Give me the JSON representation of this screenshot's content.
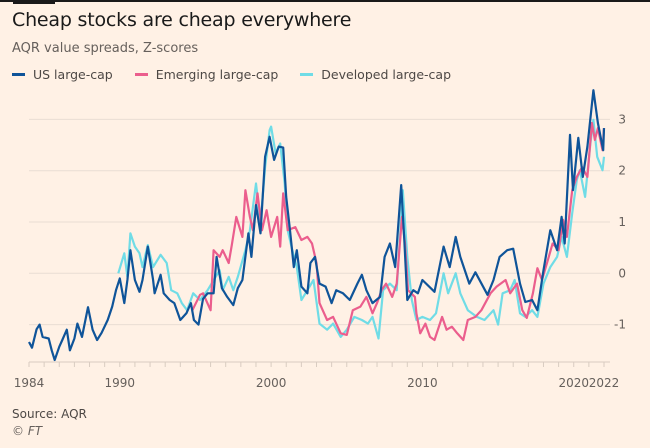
{
  "header": {
    "title": "Cheap stocks are cheap everywhere",
    "subtitle": "AQR value spreads, Z-scores"
  },
  "footer": {
    "source": "Source: AQR",
    "copyright": "© FT"
  },
  "chart_data": {
    "type": "line",
    "title": "Cheap stocks are cheap everywhere",
    "subtitle": "AQR value spreads, Z-scores",
    "xlabel": "",
    "ylabel": "",
    "xlim": [
      1984,
      2022
    ],
    "ylim": [
      -1.75,
      3.6
    ],
    "x_ticks": [
      1984,
      1990,
      2000,
      2010,
      2020,
      2022
    ],
    "y_ticks": [
      3,
      2,
      1,
      0,
      -1
    ],
    "y_axis_side": "right",
    "grid": "horizontal",
    "legend": "top-left",
    "series": [
      {
        "name": "US large-cap",
        "color": "#0f5499",
        "points": [
          [
            1984.0,
            -1.34
          ],
          [
            1984.2,
            -1.45
          ],
          [
            1984.5,
            -1.09
          ],
          [
            1984.7,
            -1.0
          ],
          [
            1984.9,
            -1.24
          ],
          [
            1985.3,
            -1.27
          ],
          [
            1985.5,
            -1.5
          ],
          [
            1985.7,
            -1.69
          ],
          [
            1986.0,
            -1.43
          ],
          [
            1986.2,
            -1.3
          ],
          [
            1986.5,
            -1.1
          ],
          [
            1986.7,
            -1.5
          ],
          [
            1987.0,
            -1.27
          ],
          [
            1987.2,
            -0.98
          ],
          [
            1987.5,
            -1.24
          ],
          [
            1987.9,
            -0.66
          ],
          [
            1988.2,
            -1.1
          ],
          [
            1988.5,
            -1.3
          ],
          [
            1988.8,
            -1.16
          ],
          [
            1989.2,
            -0.91
          ],
          [
            1989.5,
            -0.65
          ],
          [
            1989.75,
            -0.33
          ],
          [
            1990.0,
            -0.1
          ],
          [
            1990.3,
            -0.58
          ],
          [
            1990.5,
            -0.13
          ],
          [
            1990.7,
            0.45
          ],
          [
            1991.0,
            -0.13
          ],
          [
            1991.3,
            -0.36
          ],
          [
            1991.5,
            -0.13
          ],
          [
            1991.85,
            0.52
          ],
          [
            1992.2,
            -0.13
          ],
          [
            1992.3,
            -0.39
          ],
          [
            1992.7,
            -0.03
          ],
          [
            1992.9,
            -0.39
          ],
          [
            1993.3,
            -0.52
          ],
          [
            1993.6,
            -0.58
          ],
          [
            1994.0,
            -0.91
          ],
          [
            1994.4,
            -0.78
          ],
          [
            1994.7,
            -0.58
          ],
          [
            1994.9,
            -0.91
          ],
          [
            1995.2,
            -1.0
          ],
          [
            1995.5,
            -0.5
          ],
          [
            1995.8,
            -0.39
          ],
          [
            1996.2,
            -0.39
          ],
          [
            1996.4,
            0.32
          ],
          [
            1996.75,
            -0.29
          ],
          [
            1997.1,
            -0.46
          ],
          [
            1997.5,
            -0.62
          ],
          [
            1997.8,
            -0.29
          ],
          [
            1998.1,
            -0.13
          ],
          [
            1998.5,
            0.78
          ],
          [
            1998.7,
            0.32
          ],
          [
            1999.0,
            1.33
          ],
          [
            1999.3,
            0.78
          ],
          [
            1999.6,
            2.27
          ],
          [
            1999.9,
            2.66
          ],
          [
            2000.2,
            2.21
          ],
          [
            2000.5,
            2.47
          ],
          [
            2000.8,
            2.45
          ],
          [
            2001.0,
            1.49
          ],
          [
            2001.25,
            0.84
          ],
          [
            2001.5,
            0.12
          ],
          [
            2001.7,
            0.45
          ],
          [
            2002.0,
            -0.26
          ],
          [
            2002.4,
            -0.39
          ],
          [
            2002.6,
            0.2
          ],
          [
            2002.9,
            0.32
          ],
          [
            2003.2,
            -0.2
          ],
          [
            2003.6,
            -0.26
          ],
          [
            2004.0,
            -0.58
          ],
          [
            2004.3,
            -0.33
          ],
          [
            2004.75,
            -0.39
          ],
          [
            2005.2,
            -0.52
          ],
          [
            2005.7,
            -0.2
          ],
          [
            2006.0,
            -0.03
          ],
          [
            2006.3,
            -0.33
          ],
          [
            2006.7,
            -0.58
          ],
          [
            2007.2,
            -0.46
          ],
          [
            2007.5,
            0.32
          ],
          [
            2007.85,
            0.58
          ],
          [
            2008.2,
            0.12
          ],
          [
            2008.6,
            1.72
          ],
          [
            2008.8,
            0.65
          ],
          [
            2009.0,
            -0.52
          ],
          [
            2009.4,
            -0.33
          ],
          [
            2009.7,
            -0.39
          ],
          [
            2010.0,
            -0.13
          ],
          [
            2010.8,
            -0.36
          ],
          [
            2011.4,
            0.52
          ],
          [
            2011.8,
            0.12
          ],
          [
            2012.2,
            0.71
          ],
          [
            2012.5,
            0.32
          ],
          [
            2013.1,
            -0.2
          ],
          [
            2013.5,
            0.02
          ],
          [
            2014.3,
            -0.42
          ],
          [
            2014.7,
            -0.13
          ],
          [
            2015.1,
            0.32
          ],
          [
            2015.6,
            0.45
          ],
          [
            2016.0,
            0.48
          ],
          [
            2016.45,
            -0.2
          ],
          [
            2016.8,
            -0.56
          ],
          [
            2017.25,
            -0.52
          ],
          [
            2017.6,
            -0.72
          ],
          [
            2018.0,
            0.06
          ],
          [
            2018.45,
            0.84
          ],
          [
            2018.9,
            0.45
          ],
          [
            2019.2,
            1.1
          ],
          [
            2019.4,
            0.58
          ],
          [
            2019.75,
            2.7
          ],
          [
            2019.95,
            1.62
          ],
          [
            2020.3,
            2.64
          ],
          [
            2020.6,
            1.88
          ],
          [
            2020.9,
            2.47
          ],
          [
            2021.3,
            3.57
          ],
          [
            2021.6,
            2.93
          ],
          [
            2021.95,
            2.4
          ],
          [
            2022.0,
            2.83
          ]
        ]
      },
      {
        "name": "Emerging large-cap",
        "color": "#eb5e8d",
        "points": [
          [
            1994.8,
            -0.72
          ],
          [
            1995.3,
            -0.42
          ],
          [
            1995.5,
            -0.39
          ],
          [
            1996.0,
            -0.72
          ],
          [
            1996.2,
            0.45
          ],
          [
            1996.6,
            0.32
          ],
          [
            1996.8,
            0.45
          ],
          [
            1997.2,
            0.2
          ],
          [
            1997.4,
            0.55
          ],
          [
            1997.7,
            1.1
          ],
          [
            1998.1,
            0.71
          ],
          [
            1998.3,
            1.62
          ],
          [
            1998.6,
            1.1
          ],
          [
            1998.8,
            0.84
          ],
          [
            1999.1,
            1.56
          ],
          [
            1999.4,
            0.84
          ],
          [
            1999.7,
            1.23
          ],
          [
            2000.0,
            0.71
          ],
          [
            2000.4,
            1.1
          ],
          [
            2000.6,
            0.52
          ],
          [
            2000.8,
            1.56
          ],
          [
            2001.1,
            0.84
          ],
          [
            2001.6,
            0.9
          ],
          [
            2002.0,
            0.65
          ],
          [
            2002.4,
            0.71
          ],
          [
            2002.7,
            0.58
          ],
          [
            2003.0,
            0.2
          ],
          [
            2003.2,
            -0.58
          ],
          [
            2003.7,
            -0.91
          ],
          [
            2004.1,
            -0.85
          ],
          [
            2004.6,
            -1.17
          ],
          [
            2005.0,
            -1.2
          ],
          [
            2005.4,
            -0.72
          ],
          [
            2005.9,
            -0.65
          ],
          [
            2006.3,
            -0.46
          ],
          [
            2006.7,
            -0.78
          ],
          [
            2007.0,
            -0.58
          ],
          [
            2007.3,
            -0.33
          ],
          [
            2007.6,
            -0.2
          ],
          [
            2008.0,
            -0.46
          ],
          [
            2008.3,
            -0.2
          ],
          [
            2008.65,
            1.1
          ],
          [
            2008.85,
            0.58
          ],
          [
            2009.05,
            -0.33
          ],
          [
            2009.5,
            -0.46
          ],
          [
            2009.6,
            -0.78
          ],
          [
            2009.85,
            -1.17
          ],
          [
            2010.2,
            -0.98
          ],
          [
            2010.5,
            -1.24
          ],
          [
            2010.8,
            -1.3
          ],
          [
            2011.3,
            -0.85
          ],
          [
            2011.6,
            -1.1
          ],
          [
            2011.95,
            -1.04
          ],
          [
            2012.3,
            -1.17
          ],
          [
            2012.7,
            -1.3
          ],
          [
            2013.0,
            -0.91
          ],
          [
            2013.5,
            -0.85
          ],
          [
            2013.9,
            -0.72
          ],
          [
            2014.5,
            -0.39
          ],
          [
            2014.9,
            -0.26
          ],
          [
            2015.5,
            -0.13
          ],
          [
            2015.8,
            -0.39
          ],
          [
            2016.25,
            -0.2
          ],
          [
            2016.6,
            -0.72
          ],
          [
            2016.9,
            -0.87
          ],
          [
            2017.3,
            -0.39
          ],
          [
            2017.6,
            0.1
          ],
          [
            2017.9,
            -0.13
          ],
          [
            2018.25,
            0.22
          ],
          [
            2018.6,
            0.58
          ],
          [
            2019.0,
            0.45
          ],
          [
            2019.3,
            1.04
          ],
          [
            2019.55,
            0.71
          ],
          [
            2019.9,
            1.62
          ],
          [
            2020.2,
            1.88
          ],
          [
            2020.55,
            2.07
          ],
          [
            2020.9,
            1.88
          ],
          [
            2021.2,
            2.93
          ],
          [
            2021.4,
            2.6
          ],
          [
            2021.6,
            2.83
          ],
          [
            2021.9,
            2.4
          ],
          [
            2022.0,
            2.83
          ]
        ]
      },
      {
        "name": "Developed large-cap",
        "color": "#70dce6",
        "points": [
          [
            1989.9,
            0.0
          ],
          [
            1990.3,
            0.39
          ],
          [
            1990.5,
            -0.07
          ],
          [
            1990.7,
            0.78
          ],
          [
            1991.0,
            0.52
          ],
          [
            1991.3,
            0.39
          ],
          [
            1991.5,
            0.12
          ],
          [
            1991.85,
            0.55
          ],
          [
            1992.2,
            0.12
          ],
          [
            1992.7,
            0.36
          ],
          [
            1993.1,
            0.2
          ],
          [
            1993.4,
            -0.33
          ],
          [
            1993.8,
            -0.39
          ],
          [
            1994.1,
            -0.58
          ],
          [
            1994.45,
            -0.72
          ],
          [
            1994.85,
            -0.39
          ],
          [
            1995.3,
            -0.52
          ],
          [
            1995.8,
            -0.33
          ],
          [
            1996.6,
            0.06
          ],
          [
            1996.8,
            -0.33
          ],
          [
            1997.2,
            -0.07
          ],
          [
            1997.5,
            -0.33
          ],
          [
            1997.8,
            -0.07
          ],
          [
            1998.3,
            0.45
          ],
          [
            1998.6,
            0.84
          ],
          [
            1999.0,
            1.75
          ],
          [
            1999.3,
            0.97
          ],
          [
            1999.6,
            2.07
          ],
          [
            1999.9,
            2.79
          ],
          [
            2000.0,
            2.86
          ],
          [
            2000.3,
            2.34
          ],
          [
            2000.6,
            2.53
          ],
          [
            2000.9,
            1.75
          ],
          [
            2001.1,
            0.84
          ],
          [
            2001.4,
            0.45
          ],
          [
            2001.7,
            0.12
          ],
          [
            2002.0,
            -0.52
          ],
          [
            2002.4,
            -0.33
          ],
          [
            2002.8,
            -0.13
          ],
          [
            2003.2,
            -0.98
          ],
          [
            2003.7,
            -1.1
          ],
          [
            2004.1,
            -0.98
          ],
          [
            2004.6,
            -1.24
          ],
          [
            2005.0,
            -1.1
          ],
          [
            2005.5,
            -0.85
          ],
          [
            2006.0,
            -0.91
          ],
          [
            2006.4,
            -0.98
          ],
          [
            2006.7,
            -0.85
          ],
          [
            2007.1,
            -1.27
          ],
          [
            2007.4,
            -0.33
          ],
          [
            2007.85,
            -0.2
          ],
          [
            2008.3,
            -0.33
          ],
          [
            2008.7,
            1.62
          ],
          [
            2009.0,
            0.32
          ],
          [
            2009.3,
            -0.52
          ],
          [
            2009.6,
            -0.91
          ],
          [
            2010.0,
            -0.85
          ],
          [
            2010.5,
            -0.91
          ],
          [
            2010.9,
            -0.78
          ],
          [
            2011.4,
            0.0
          ],
          [
            2011.7,
            -0.39
          ],
          [
            2012.2,
            0.0
          ],
          [
            2012.5,
            -0.39
          ],
          [
            2013.0,
            -0.72
          ],
          [
            2013.6,
            -0.85
          ],
          [
            2014.1,
            -0.91
          ],
          [
            2014.7,
            -0.72
          ],
          [
            2015.0,
            -1.0
          ],
          [
            2015.3,
            -0.39
          ],
          [
            2015.8,
            -0.33
          ],
          [
            2016.1,
            -0.13
          ],
          [
            2016.45,
            -0.78
          ],
          [
            2016.8,
            -0.85
          ],
          [
            2017.25,
            -0.72
          ],
          [
            2017.6,
            -0.85
          ],
          [
            2018.0,
            -0.2
          ],
          [
            2018.45,
            0.12
          ],
          [
            2018.9,
            0.32
          ],
          [
            2019.2,
            0.71
          ],
          [
            2019.55,
            0.32
          ],
          [
            2019.9,
            1.17
          ],
          [
            2020.2,
            1.82
          ],
          [
            2020.4,
            2.01
          ],
          [
            2020.75,
            1.49
          ],
          [
            2021.1,
            2.53
          ],
          [
            2021.3,
            2.99
          ],
          [
            2021.55,
            2.27
          ],
          [
            2021.9,
            2.01
          ],
          [
            2022.0,
            2.27
          ]
        ]
      }
    ]
  }
}
